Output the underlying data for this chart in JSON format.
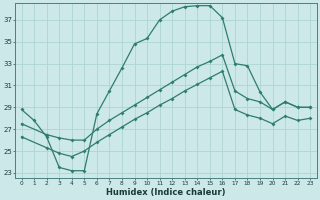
{
  "xlabel": "Humidex (Indice chaleur)",
  "bg_color": "#cce8e8",
  "grid_color": "#b0d0d0",
  "line_color": "#2e7d6e",
  "xlim": [
    -0.5,
    23.5
  ],
  "ylim": [
    22.5,
    38.5
  ],
  "xticks": [
    0,
    1,
    2,
    3,
    4,
    5,
    6,
    7,
    8,
    9,
    10,
    11,
    12,
    13,
    14,
    15,
    16,
    17,
    18,
    19,
    20,
    21,
    22,
    23
  ],
  "yticks": [
    23,
    25,
    27,
    29,
    31,
    33,
    35,
    37
  ],
  "curve1_x": [
    0,
    1,
    2,
    3,
    4,
    5,
    6,
    7,
    8,
    9,
    10,
    11,
    12,
    13,
    14,
    15,
    16,
    17,
    18,
    19,
    20,
    21,
    22,
    23
  ],
  "curve1_y": [
    28.8,
    27.8,
    26.3,
    23.5,
    23.2,
    23.2,
    28.4,
    30.5,
    32.6,
    34.8,
    35.3,
    37.0,
    37.8,
    38.2,
    38.3,
    38.3,
    37.2,
    33.0,
    32.8,
    30.4,
    28.8,
    29.5,
    29.0,
    29.0
  ],
  "curve2_x": [
    0,
    2,
    3,
    4,
    5,
    6,
    7,
    8,
    9,
    10,
    11,
    12,
    13,
    14,
    15,
    16,
    17,
    18,
    19,
    20,
    21,
    22,
    23
  ],
  "curve2_y": [
    27.5,
    26.5,
    26.2,
    26.0,
    26.0,
    27.0,
    27.8,
    28.5,
    29.2,
    29.9,
    30.6,
    31.3,
    32.0,
    32.7,
    33.2,
    33.8,
    30.5,
    29.8,
    29.5,
    28.8,
    29.5,
    29.0,
    29.0
  ],
  "curve3_x": [
    0,
    2,
    3,
    4,
    5,
    6,
    7,
    8,
    9,
    10,
    11,
    12,
    13,
    14,
    15,
    16,
    17,
    18,
    19,
    20,
    21,
    22,
    23
  ],
  "curve3_y": [
    26.3,
    25.3,
    24.8,
    24.5,
    25.0,
    25.8,
    26.5,
    27.2,
    27.9,
    28.5,
    29.2,
    29.8,
    30.5,
    31.1,
    31.7,
    32.3,
    28.8,
    28.3,
    28.0,
    27.5,
    28.2,
    27.8,
    28.0
  ]
}
